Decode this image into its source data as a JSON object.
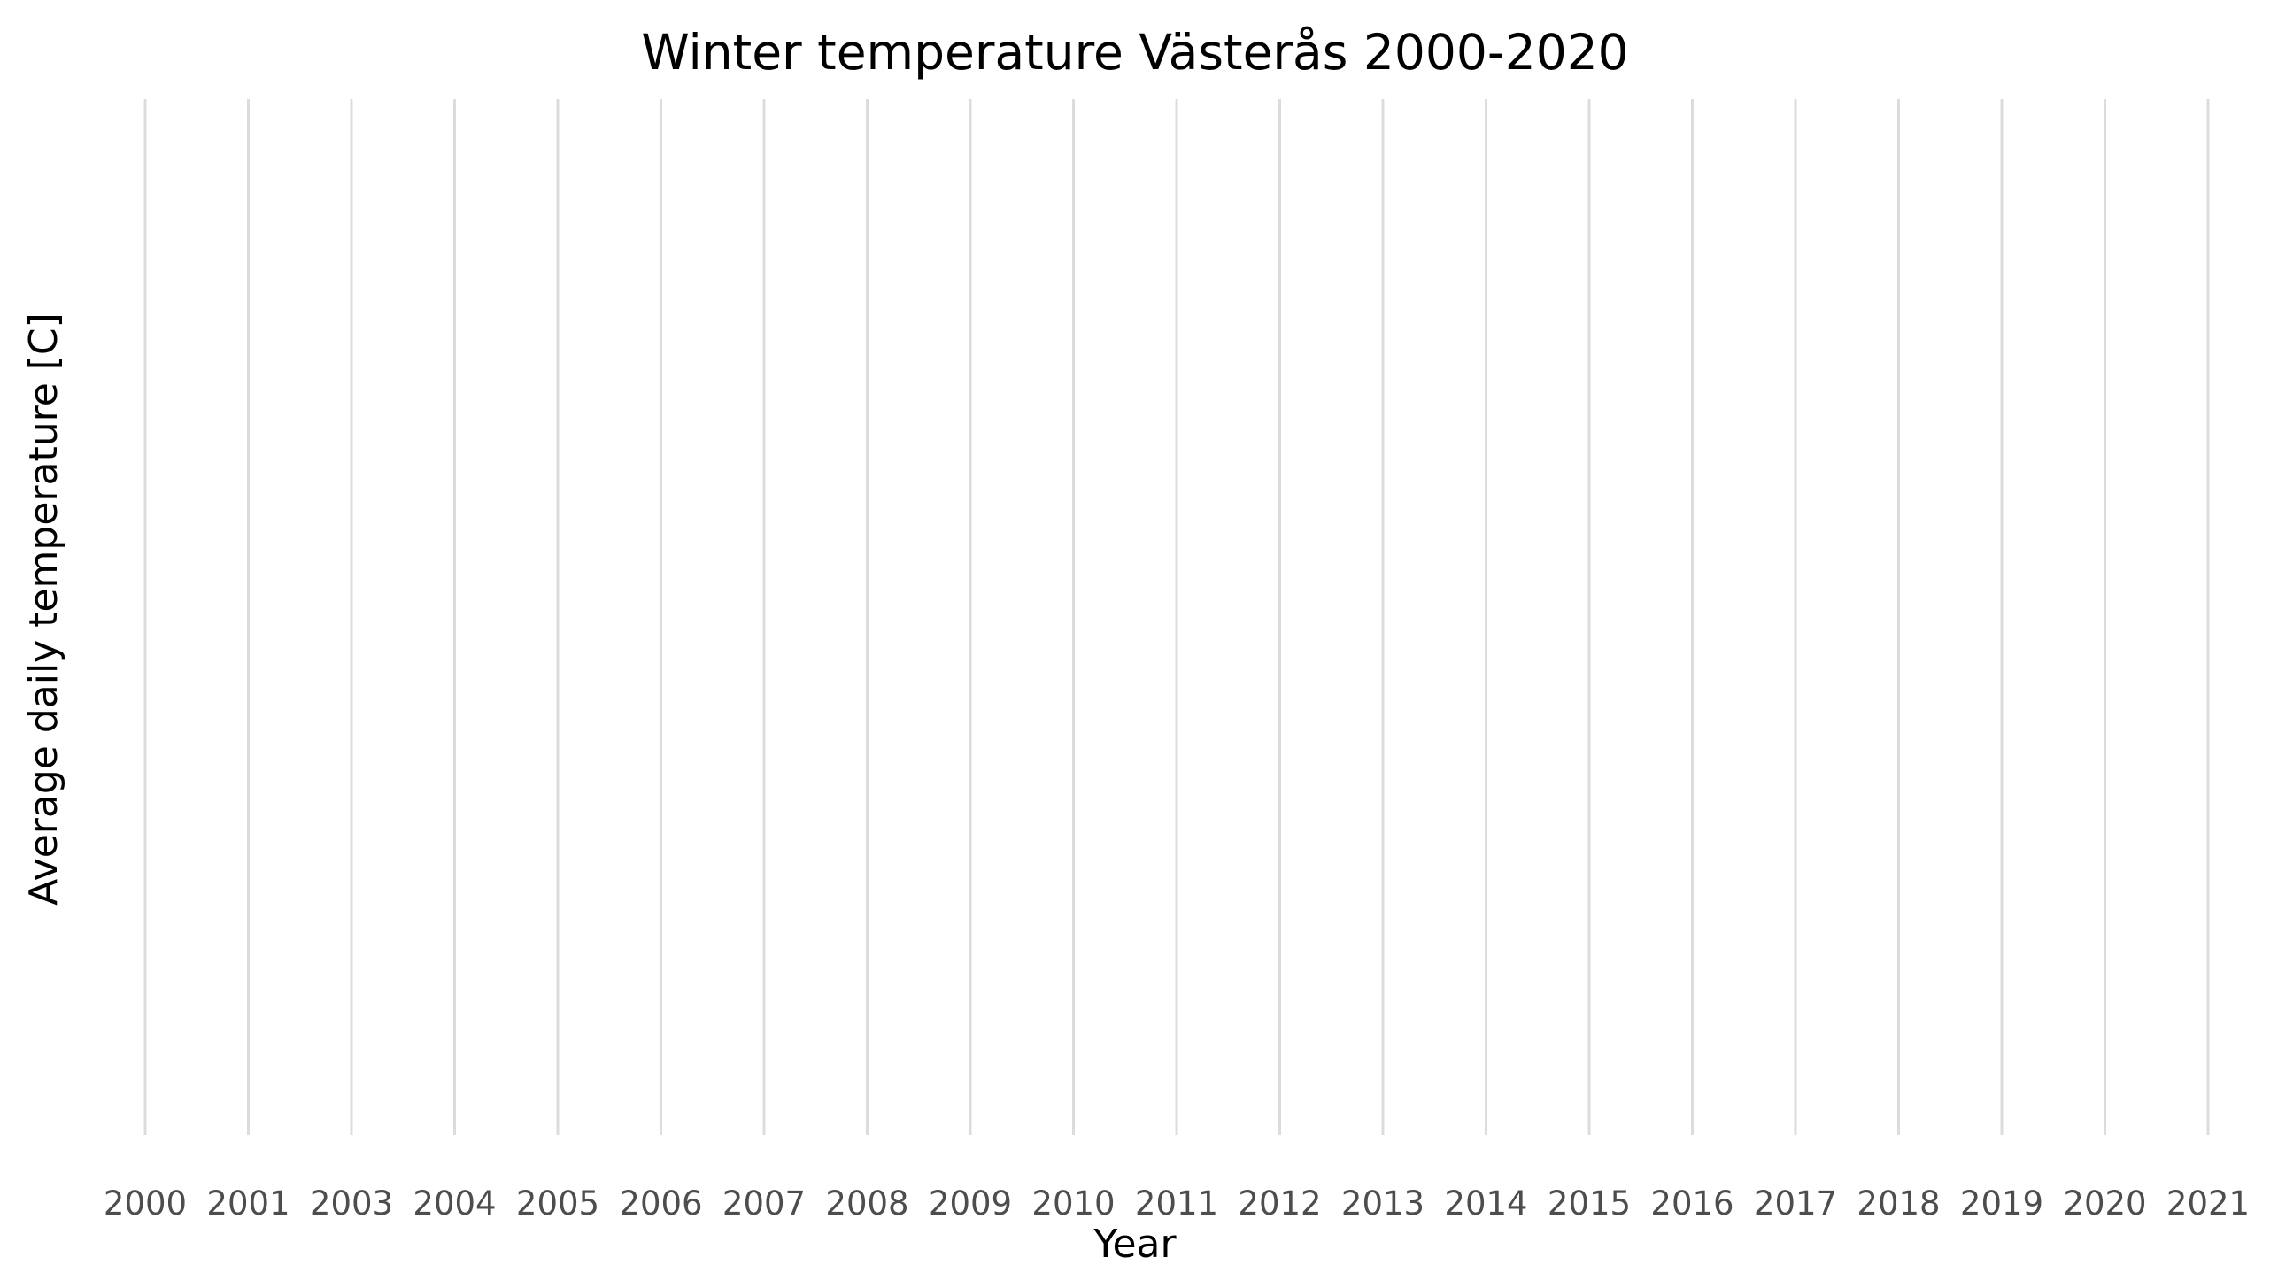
{
  "chart_data": {
    "type": "line",
    "title": "Winter temperature Västerås 2000-2020",
    "xlabel": "Year",
    "ylabel": "Average daily temperature [C]",
    "x_ticks": [
      "2000",
      "2001",
      "2003",
      "2004",
      "2005",
      "2006",
      "2007",
      "2008",
      "2009",
      "2010",
      "2011",
      "2012",
      "2013",
      "2014",
      "2015",
      "2016",
      "2017",
      "2018",
      "2019",
      "2020",
      "2021"
    ],
    "series": [],
    "grid": "vertical-only",
    "legend": "none",
    "colors": {
      "gridline": "#dcdcdc",
      "tick_label": "#4d4d4d",
      "text": "#000000",
      "background": "#ffffff"
    }
  }
}
